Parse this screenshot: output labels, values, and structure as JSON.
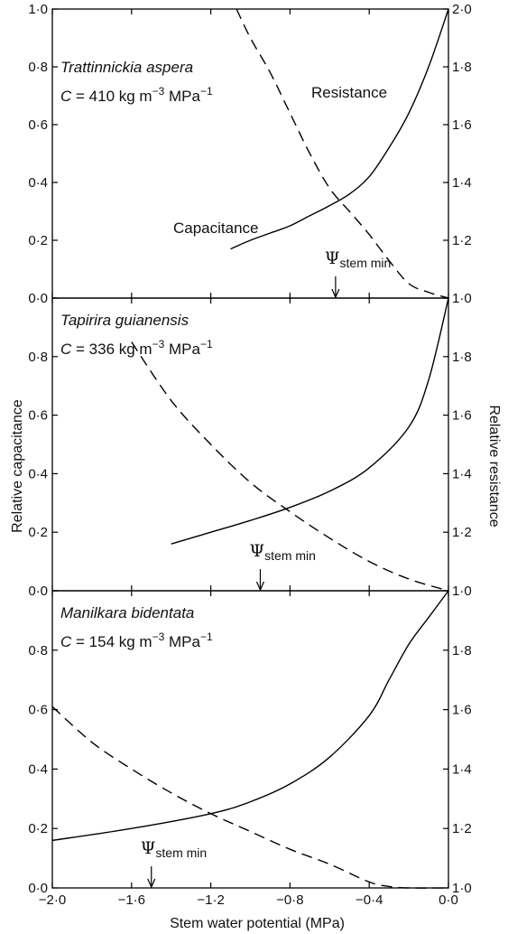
{
  "figure": {
    "xlabel": "Stem water potential (MPa)",
    "ylabel_left": "Relative capacitance",
    "ylabel_right": "Relative resistance",
    "x_ticks": [
      "−2·0",
      "−1·6",
      "−1·2",
      "−0·8",
      "−0·4",
      "0·0"
    ],
    "psi_symbol": "Ψ",
    "psi_subscript": "stem min",
    "capacitance_label": "Capacitance",
    "resistance_label": "Resistance"
  },
  "chart_data": [
    {
      "type": "line",
      "species": "Trattinnickia aspera",
      "c_label": "C",
      "c_text": " = 410 kg m",
      "c_exp": "−3",
      "c_unit": " MPa",
      "c_exp2": "−1",
      "xlim": [
        -2.0,
        0.0
      ],
      "ylim_left": [
        0,
        1.0
      ],
      "ylim_right": [
        1.0,
        2.0
      ],
      "left_ticks": [
        "0·0",
        "0·2",
        "0·4",
        "0·6",
        "0·8",
        "1·0"
      ],
      "right_ticks": [
        "1·0",
        "1·2",
        "1·4",
        "1·6",
        "1·8",
        "2·0"
      ],
      "psi_stem_min": -0.57,
      "series": [
        {
          "name": "Capacitance",
          "style": "solid",
          "axis": "left",
          "x": [
            -1.1,
            -1.0,
            -0.9,
            -0.8,
            -0.7,
            -0.6,
            -0.5,
            -0.4,
            -0.3,
            -0.2,
            -0.1,
            0.0
          ],
          "y": [
            0.17,
            0.2,
            0.225,
            0.25,
            0.285,
            0.32,
            0.36,
            0.42,
            0.52,
            0.64,
            0.8,
            1.0
          ]
        },
        {
          "name": "Resistance",
          "style": "dashed",
          "axis": "right",
          "x": [
            -1.07,
            -1.0,
            -0.9,
            -0.8,
            -0.7,
            -0.6,
            -0.5,
            -0.4,
            -0.3,
            -0.2,
            -0.1,
            0.0
          ],
          "y": [
            2.0,
            1.9,
            1.78,
            1.64,
            1.5,
            1.38,
            1.3,
            1.22,
            1.13,
            1.05,
            1.02,
            1.0
          ]
        }
      ]
    },
    {
      "type": "line",
      "species": "Tapirira guianensis",
      "c_label": "C",
      "c_text": " = 336 kg m",
      "c_exp": "−3",
      "c_unit": " MPa",
      "c_exp2": "−1",
      "xlim": [
        -2.0,
        0.0
      ],
      "ylim_left": [
        0,
        1.0
      ],
      "ylim_right": [
        1.0,
        2.0
      ],
      "left_ticks": [
        "0·0",
        "0·2",
        "0·4",
        "0·6",
        "0·8",
        ""
      ],
      "right_ticks": [
        "1·0",
        "1·2",
        "1·4",
        "1·6",
        "1·8",
        ""
      ],
      "psi_stem_min": -0.95,
      "series": [
        {
          "name": "Capacitance",
          "style": "solid",
          "axis": "left",
          "x": [
            -1.4,
            -1.2,
            -1.0,
            -0.8,
            -0.6,
            -0.4,
            -0.2,
            -0.1,
            0.0
          ],
          "y": [
            0.16,
            0.2,
            0.24,
            0.285,
            0.34,
            0.42,
            0.56,
            0.72,
            1.0
          ]
        },
        {
          "name": "Resistance",
          "style": "dashed",
          "axis": "right",
          "x": [
            -1.6,
            -1.4,
            -1.2,
            -1.0,
            -0.8,
            -0.6,
            -0.4,
            -0.2,
            0.0
          ],
          "y": [
            1.85,
            1.65,
            1.5,
            1.37,
            1.27,
            1.18,
            1.1,
            1.04,
            1.0
          ]
        }
      ]
    },
    {
      "type": "line",
      "species": "Manilkara bidentata",
      "c_label": "C",
      "c_text": " = 154 kg m",
      "c_exp": "−3",
      "c_unit": " MPa",
      "c_exp2": "−1",
      "xlim": [
        -2.0,
        0.0
      ],
      "ylim_left": [
        0,
        1.0
      ],
      "ylim_right": [
        1.0,
        2.0
      ],
      "left_ticks": [
        "0·0",
        "0·2",
        "0·4",
        "0·6",
        "0·8",
        ""
      ],
      "right_ticks": [
        "1·0",
        "1·2",
        "1·4",
        "1·6",
        "1·8",
        ""
      ],
      "psi_stem_min": -1.5,
      "series": [
        {
          "name": "Capacitance",
          "style": "solid",
          "axis": "left",
          "x": [
            -2.0,
            -1.6,
            -1.2,
            -1.0,
            -0.8,
            -0.6,
            -0.4,
            -0.3,
            -0.2,
            -0.1,
            0.0
          ],
          "y": [
            0.16,
            0.2,
            0.25,
            0.29,
            0.35,
            0.44,
            0.58,
            0.7,
            0.82,
            0.91,
            1.0
          ]
        },
        {
          "name": "Resistance",
          "style": "dashed",
          "axis": "right",
          "x": [
            -2.0,
            -1.8,
            -1.6,
            -1.4,
            -1.2,
            -1.0,
            -0.8,
            -0.6,
            -0.4,
            -0.3,
            -0.2,
            0.0
          ],
          "y": [
            1.61,
            1.49,
            1.4,
            1.32,
            1.25,
            1.19,
            1.13,
            1.08,
            1.02,
            1.005,
            1.0,
            1.0
          ]
        }
      ]
    }
  ]
}
